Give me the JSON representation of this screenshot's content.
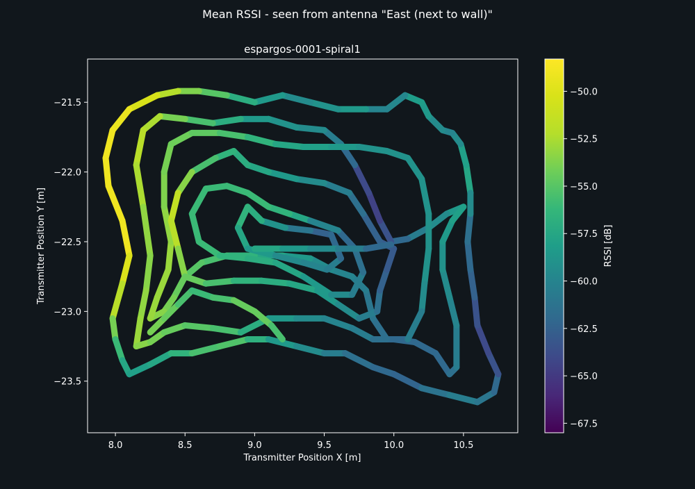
{
  "figure": {
    "suptitle": "Mean RSSI - seen from antenna \"East (next to wall)\"",
    "background": "#11171c"
  },
  "chart_data": {
    "type": "scatter",
    "title": "espargos-0001-spiral1",
    "xlabel": "Transmitter Position X [m]",
    "ylabel": "Transmitter Position Y [m]",
    "xlim": [
      7.8,
      10.89
    ],
    "ylim": [
      -23.87,
      -21.19
    ],
    "xticks": [
      8.0,
      8.5,
      9.0,
      9.5,
      10.0,
      10.5
    ],
    "xtick_labels": [
      "8.0",
      "8.5",
      "9.0",
      "9.5",
      "10.0",
      "10.5"
    ],
    "yticks": [
      -21.5,
      -22.0,
      -22.5,
      -23.0,
      -23.5
    ],
    "ytick_labels": [
      "−21.5",
      "−22.0",
      "−22.5",
      "−23.0",
      "−23.5"
    ],
    "grid": false,
    "colormap": "viridis",
    "colorbar": {
      "label": "RSSI [dB]",
      "vmin": -68.0,
      "vmax": -48.3,
      "ticks": [
        -50.0,
        -52.5,
        -55.0,
        -57.5,
        -60.0,
        -62.5,
        -65.0,
        -67.5
      ],
      "tick_labels": [
        "−50.0",
        "−52.5",
        "−55.0",
        "−57.5",
        "−60.0",
        "−62.5",
        "−65.0",
        "−67.5"
      ]
    },
    "series": [
      {
        "path": [
          [
            10.55,
            -22.15
          ],
          [
            10.52,
            -21.95
          ],
          [
            10.48,
            -21.8
          ],
          [
            10.42,
            -21.72
          ],
          [
            10.35,
            -21.7
          ],
          [
            10.25,
            -21.6
          ],
          [
            10.2,
            -21.5
          ],
          [
            10.08,
            -21.45
          ],
          [
            9.95,
            -21.55
          ],
          [
            9.8,
            -21.55
          ],
          [
            9.6,
            -21.55
          ],
          [
            9.4,
            -21.5
          ],
          [
            9.2,
            -21.45
          ],
          [
            9.0,
            -21.5
          ],
          [
            8.8,
            -21.45
          ],
          [
            8.6,
            -21.42
          ],
          [
            8.45,
            -21.42
          ],
          [
            8.3,
            -21.45
          ],
          [
            8.1,
            -21.55
          ],
          [
            7.98,
            -21.7
          ],
          [
            7.93,
            -21.9
          ],
          [
            7.95,
            -22.1
          ],
          [
            8.05,
            -22.35
          ],
          [
            8.1,
            -22.6
          ],
          [
            8.05,
            -22.8
          ],
          [
            7.98,
            -23.05
          ],
          [
            8.0,
            -23.2
          ],
          [
            8.05,
            -23.35
          ],
          [
            8.1,
            -23.45
          ],
          [
            8.25,
            -23.38
          ],
          [
            8.4,
            -23.3
          ],
          [
            8.55,
            -23.3
          ],
          [
            8.75,
            -23.25
          ],
          [
            8.95,
            -23.2
          ],
          [
            9.1,
            -23.2
          ],
          [
            9.3,
            -23.25
          ],
          [
            9.5,
            -23.3
          ],
          [
            9.65,
            -23.3
          ],
          [
            9.85,
            -23.4
          ],
          [
            10.0,
            -23.45
          ],
          [
            10.2,
            -23.55
          ],
          [
            10.4,
            -23.6
          ],
          [
            10.6,
            -23.65
          ],
          [
            10.72,
            -23.58
          ],
          [
            10.75,
            -23.45
          ],
          [
            10.68,
            -23.3
          ],
          [
            10.6,
            -23.1
          ],
          [
            10.58,
            -22.9
          ],
          [
            10.55,
            -22.7
          ],
          [
            10.53,
            -22.5
          ],
          [
            10.55,
            -22.3
          ],
          [
            10.55,
            -22.15
          ]
        ],
        "rssi": [
          -58.0,
          -57.0,
          -59.0,
          -60.0,
          -60.0,
          -59.0,
          -58.0,
          -58.5,
          -61.0,
          -59.0,
          -58.0,
          -60.0,
          -59.0,
          -58.0,
          -56.0,
          -54.0,
          -53.5,
          -51.0,
          -49.5,
          -49.0,
          -49.0,
          -49.0,
          -49.0,
          -49.0,
          -51.0,
          -53.0,
          -55.0,
          -57.0,
          -58.0,
          -58.0,
          -57.0,
          -56.0,
          -55.0,
          -55.5,
          -58.0,
          -59.0,
          -60.0,
          -61.0,
          -62.0,
          -62.0,
          -62.5,
          -60.0,
          -61.0,
          -61.0,
          -63.0,
          -64.0,
          -64.0,
          -63.0,
          -62.0,
          -62.0,
          -61.0,
          -58.0
        ]
      },
      {
        "path": [
          [
            10.5,
            -22.25
          ],
          [
            10.38,
            -22.3
          ],
          [
            10.25,
            -22.4
          ],
          [
            10.1,
            -22.48
          ],
          [
            9.98,
            -22.5
          ],
          [
            9.9,
            -22.35
          ],
          [
            9.82,
            -22.15
          ],
          [
            9.72,
            -21.95
          ],
          [
            9.62,
            -21.8
          ],
          [
            9.5,
            -21.7
          ],
          [
            9.3,
            -21.68
          ],
          [
            9.1,
            -21.62
          ],
          [
            8.9,
            -21.62
          ],
          [
            8.7,
            -21.65
          ],
          [
            8.5,
            -21.62
          ],
          [
            8.32,
            -21.6
          ],
          [
            8.2,
            -21.7
          ],
          [
            8.15,
            -21.95
          ],
          [
            8.2,
            -22.25
          ],
          [
            8.25,
            -22.6
          ],
          [
            8.22,
            -22.85
          ],
          [
            8.18,
            -23.05
          ],
          [
            8.15,
            -23.25
          ],
          [
            8.25,
            -23.22
          ],
          [
            8.35,
            -23.15
          ],
          [
            8.5,
            -23.1
          ],
          [
            8.7,
            -23.12
          ],
          [
            8.9,
            -23.15
          ],
          [
            9.1,
            -23.05
          ],
          [
            9.3,
            -23.05
          ],
          [
            9.5,
            -23.05
          ],
          [
            9.7,
            -23.12
          ],
          [
            9.85,
            -23.2
          ],
          [
            10.0,
            -23.2
          ],
          [
            10.15,
            -23.22
          ],
          [
            10.3,
            -23.3
          ],
          [
            10.4,
            -23.45
          ],
          [
            10.45,
            -23.4
          ],
          [
            10.45,
            -23.1
          ],
          [
            10.4,
            -22.9
          ],
          [
            10.35,
            -22.7
          ],
          [
            10.35,
            -22.5
          ],
          [
            10.42,
            -22.35
          ],
          [
            10.5,
            -22.25
          ]
        ],
        "rssi": [
          -58.0,
          -59.0,
          -60.0,
          -61.0,
          -63.0,
          -64.0,
          -65.0,
          -63.0,
          -61.0,
          -60.0,
          -59.0,
          -59.0,
          -58.0,
          -56.0,
          -55.0,
          -53.0,
          -52.0,
          -52.0,
          -53.0,
          -53.5,
          -53.5,
          -53.0,
          -53.0,
          -54.0,
          -54.0,
          -55.0,
          -55.0,
          -56.0,
          -58.0,
          -59.0,
          -60.0,
          -60.0,
          -61.0,
          -62.0,
          -62.0,
          -62.0,
          -62.0,
          -61.0,
          -60.0,
          -60.0,
          -59.0,
          -59.0,
          -58.0,
          -58.0
        ]
      },
      {
        "path": [
          [
            10.1,
            -23.2
          ],
          [
            9.95,
            -23.2
          ],
          [
            9.85,
            -23.05
          ],
          [
            9.8,
            -22.85
          ],
          [
            9.7,
            -22.75
          ],
          [
            9.55,
            -22.7
          ],
          [
            9.4,
            -22.62
          ],
          [
            9.2,
            -22.6
          ],
          [
            9.0,
            -22.6
          ],
          [
            8.8,
            -22.6
          ],
          [
            8.62,
            -22.65
          ],
          [
            8.5,
            -22.75
          ],
          [
            8.42,
            -22.9
          ],
          [
            8.35,
            -23.0
          ],
          [
            8.25,
            -23.05
          ],
          [
            8.3,
            -22.9
          ],
          [
            8.38,
            -22.7
          ],
          [
            8.4,
            -22.5
          ],
          [
            8.35,
            -22.25
          ],
          [
            8.35,
            -22.0
          ],
          [
            8.4,
            -21.8
          ],
          [
            8.55,
            -21.72
          ],
          [
            8.75,
            -21.72
          ],
          [
            8.95,
            -21.75
          ],
          [
            9.15,
            -21.8
          ],
          [
            9.35,
            -21.82
          ],
          [
            9.55,
            -21.82
          ],
          [
            9.75,
            -21.82
          ],
          [
            9.95,
            -21.85
          ],
          [
            10.1,
            -21.9
          ],
          [
            10.2,
            -22.05
          ],
          [
            10.25,
            -22.3
          ],
          [
            10.25,
            -22.55
          ],
          [
            10.22,
            -22.8
          ],
          [
            10.2,
            -23.0
          ],
          [
            10.1,
            -23.2
          ]
        ],
        "rssi": [
          -62.0,
          -62.0,
          -61.0,
          -61.0,
          -60.0,
          -60.0,
          -59.0,
          -58.0,
          -57.0,
          -56.0,
          -55.0,
          -55.0,
          -54.0,
          -54.0,
          -53.0,
          -53.0,
          -53.0,
          -53.0,
          -53.5,
          -54.0,
          -54.0,
          -54.5,
          -55.0,
          -56.0,
          -57.0,
          -58.0,
          -58.0,
          -59.0,
          -59.0,
          -59.0,
          -59.0,
          -59.0,
          -59.0,
          -59.0,
          -60.0,
          -61.0
        ]
      },
      {
        "path": [
          [
            10.0,
            -22.55
          ],
          [
            9.9,
            -22.5
          ],
          [
            9.78,
            -22.3
          ],
          [
            9.68,
            -22.15
          ],
          [
            9.5,
            -22.08
          ],
          [
            9.3,
            -22.05
          ],
          [
            9.1,
            -22.0
          ],
          [
            8.95,
            -21.95
          ],
          [
            8.85,
            -21.85
          ],
          [
            8.72,
            -21.9
          ],
          [
            8.55,
            -22.0
          ],
          [
            8.45,
            -22.15
          ],
          [
            8.4,
            -22.35
          ],
          [
            8.45,
            -22.55
          ],
          [
            8.5,
            -22.75
          ],
          [
            8.65,
            -22.8
          ],
          [
            8.85,
            -22.78
          ],
          [
            9.05,
            -22.78
          ],
          [
            9.25,
            -22.8
          ],
          [
            9.45,
            -22.85
          ],
          [
            9.6,
            -22.95
          ],
          [
            9.75,
            -23.05
          ],
          [
            9.88,
            -23.0
          ],
          [
            9.9,
            -22.85
          ],
          [
            9.95,
            -22.7
          ],
          [
            10.0,
            -22.55
          ]
        ],
        "rssi": [
          -63.0,
          -63.0,
          -62.0,
          -61.0,
          -60.0,
          -59.0,
          -58.0,
          -57.0,
          -57.0,
          -56.0,
          -55.0,
          -52.0,
          -51.0,
          -53.0,
          -54.0,
          -55.0,
          -56.0,
          -57.0,
          -57.0,
          -58.0,
          -59.0,
          -60.0,
          -61.0,
          -62.0,
          -63.0,
          -63.0
        ]
      },
      {
        "path": [
          [
            9.4,
            -22.35
          ],
          [
            9.25,
            -22.3
          ],
          [
            9.1,
            -22.25
          ],
          [
            8.95,
            -22.15
          ],
          [
            8.8,
            -22.1
          ],
          [
            8.65,
            -22.12
          ],
          [
            8.55,
            -22.3
          ],
          [
            8.6,
            -22.5
          ],
          [
            8.75,
            -22.6
          ],
          [
            8.95,
            -22.62
          ],
          [
            9.15,
            -22.65
          ],
          [
            9.35,
            -22.75
          ],
          [
            9.55,
            -22.88
          ],
          [
            9.7,
            -22.88
          ],
          [
            9.78,
            -22.72
          ],
          [
            9.72,
            -22.55
          ],
          [
            9.6,
            -22.42
          ],
          [
            9.4,
            -22.35
          ]
        ],
        "rssi": [
          -58.0,
          -57.0,
          -56.0,
          -56.0,
          -56.0,
          -56.0,
          -56.0,
          -56.0,
          -56.0,
          -57.0,
          -57.0,
          -58.0,
          -59.0,
          -60.0,
          -61.0,
          -62.0,
          -62.0,
          -58.0
        ]
      },
      {
        "path": [
          [
            9.55,
            -22.45
          ],
          [
            9.4,
            -22.42
          ],
          [
            9.22,
            -22.4
          ],
          [
            9.05,
            -22.35
          ],
          [
            8.95,
            -22.25
          ],
          [
            8.88,
            -22.4
          ],
          [
            8.95,
            -22.55
          ],
          [
            9.15,
            -22.6
          ],
          [
            9.35,
            -22.65
          ],
          [
            9.52,
            -22.7
          ],
          [
            9.62,
            -22.62
          ],
          [
            9.55,
            -22.45
          ]
        ],
        "rssi": [
          -63.0,
          -62.0,
          -60.0,
          -58.0,
          -56.0,
          -57.0,
          -58.0,
          -59.0,
          -60.0,
          -60.0,
          -61.0,
          -63.0
        ]
      },
      {
        "path": [
          [
            8.25,
            -23.15
          ],
          [
            8.35,
            -23.05
          ],
          [
            8.45,
            -22.95
          ],
          [
            8.55,
            -22.85
          ],
          [
            8.7,
            -22.9
          ],
          [
            8.85,
            -22.92
          ],
          [
            9.0,
            -23.0
          ],
          [
            9.12,
            -23.1
          ],
          [
            9.2,
            -23.2
          ]
        ],
        "rssi": [
          -54.0,
          -54.0,
          -55.0,
          -56.0,
          -56.0,
          -55.0,
          -54.0,
          -55.0,
          -56.0
        ]
      },
      {
        "path": [
          [
            9.0,
            -22.55
          ],
          [
            9.2,
            -22.55
          ],
          [
            9.4,
            -22.55
          ],
          [
            9.6,
            -22.55
          ],
          [
            9.8,
            -22.55
          ],
          [
            9.98,
            -22.52
          ]
        ],
        "rssi": [
          -57.0,
          -58.0,
          -59.0,
          -60.0,
          -61.0,
          -63.0
        ]
      }
    ]
  }
}
